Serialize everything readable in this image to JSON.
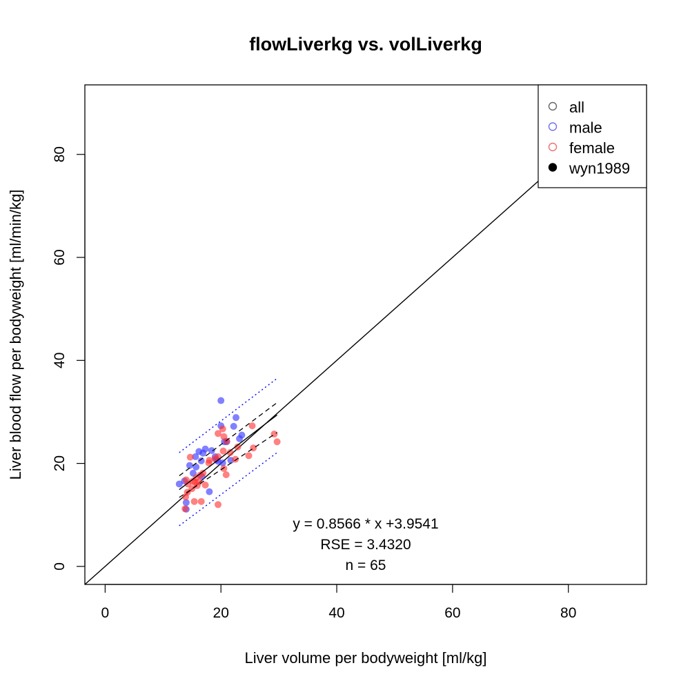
{
  "chart_data": {
    "type": "scatter",
    "title": "flowLiverkg vs. volLiverkg",
    "xlabel": "Liver volume per bodyweight [ml/kg]",
    "ylabel": "Liver blood flow per bodyweight [ml/min/kg]",
    "xlim": [
      -3.5,
      93.5
    ],
    "ylim": [
      -3.5,
      93.5
    ],
    "xticks": [
      0,
      20,
      40,
      60,
      80
    ],
    "yticks": [
      0,
      20,
      40,
      60,
      80
    ],
    "grid": false,
    "legend_position": "top-right",
    "legend": [
      {
        "label": "all",
        "marker": "open-circle",
        "color": "#666666"
      },
      {
        "label": "male",
        "marker": "open-circle",
        "color": "#7070ee"
      },
      {
        "label": "female",
        "marker": "open-circle",
        "color": "#ee7070"
      },
      {
        "label": "wyn1989",
        "marker": "filled-circle",
        "color": "#000000"
      }
    ],
    "colors": {
      "male": "#3333ff",
      "female": "#ff3333",
      "identity": "#000000",
      "fit": "#000000",
      "bands": "#0000ff"
    },
    "series": [
      {
        "name": "male",
        "points": [
          [
            12.8,
            16.0
          ],
          [
            13.7,
            16.6
          ],
          [
            14.0,
            12.4
          ],
          [
            14.0,
            11.1
          ],
          [
            14.6,
            19.6
          ],
          [
            15.2,
            18.1
          ],
          [
            15.6,
            21.3
          ],
          [
            15.7,
            19.3
          ],
          [
            16.2,
            22.3
          ],
          [
            16.6,
            20.5
          ],
          [
            16.7,
            17.5
          ],
          [
            16.9,
            22.0
          ],
          [
            17.3,
            22.8
          ],
          [
            18.0,
            14.5
          ],
          [
            18.4,
            22.5
          ],
          [
            19.0,
            21.3
          ],
          [
            19.2,
            20.7
          ],
          [
            19.5,
            20.4
          ],
          [
            20.0,
            27.3
          ],
          [
            20.0,
            32.2
          ],
          [
            20.3,
            20.1
          ],
          [
            20.6,
            24.2
          ],
          [
            21.0,
            24.2
          ],
          [
            21.7,
            20.6
          ],
          [
            22.2,
            27.2
          ],
          [
            22.6,
            28.9
          ],
          [
            23.2,
            24.8
          ],
          [
            23.6,
            25.5
          ]
        ]
      },
      {
        "name": "female",
        "points": [
          [
            13.8,
            11.2
          ],
          [
            13.9,
            13.5
          ],
          [
            14.0,
            16.8
          ],
          [
            14.2,
            14.4
          ],
          [
            14.7,
            21.2
          ],
          [
            15.0,
            15.1
          ],
          [
            15.4,
            12.6
          ],
          [
            15.5,
            16.4
          ],
          [
            15.7,
            17.2
          ],
          [
            15.9,
            15.7
          ],
          [
            16.2,
            16.4
          ],
          [
            16.4,
            17.7
          ],
          [
            16.6,
            12.6
          ],
          [
            17.3,
            15.8
          ],
          [
            17.9,
            20.1
          ],
          [
            19.5,
            25.8
          ],
          [
            19.5,
            21.3
          ],
          [
            19.5,
            12.0
          ],
          [
            20.3,
            26.7
          ],
          [
            20.4,
            22.4
          ],
          [
            20.5,
            19.0
          ],
          [
            20.5,
            25.2
          ],
          [
            20.9,
            17.8
          ],
          [
            21.0,
            24.3
          ],
          [
            22.5,
            20.8
          ],
          [
            22.9,
            23.2
          ],
          [
            24.8,
            21.5
          ],
          [
            25.4,
            27.3
          ],
          [
            25.6,
            23.0
          ],
          [
            29.2,
            25.7
          ],
          [
            29.7,
            24.2
          ],
          [
            18.0,
            20.6
          ],
          [
            16.9,
            18.1
          ],
          [
            14.3,
            16.0
          ],
          [
            21.6,
            22.1
          ],
          [
            19.0,
            20.9
          ],
          [
            15.1,
            16.5
          ]
        ]
      }
    ],
    "identity_line": {
      "slope": 1,
      "intercept": 0
    },
    "fit_line": {
      "slope": 0.8566,
      "intercept": 3.9541,
      "x_range": [
        12.8,
        29.7
      ]
    },
    "confidence_band": {
      "lower_at_xmin": 13.4,
      "upper_at_xmin": 17.6,
      "lower_at_xmax": 26.0,
      "upper_at_xmax": 31.8
    },
    "prediction_band": {
      "lower_at_xmin": 7.9,
      "upper_at_xmin": 22.1,
      "lower_at_xmax": 22.1,
      "upper_at_xmax": 36.5
    },
    "annotations": [
      "y = 0.8566 * x +3.9541",
      "RSE = 3.4320",
      "n = 65"
    ]
  }
}
